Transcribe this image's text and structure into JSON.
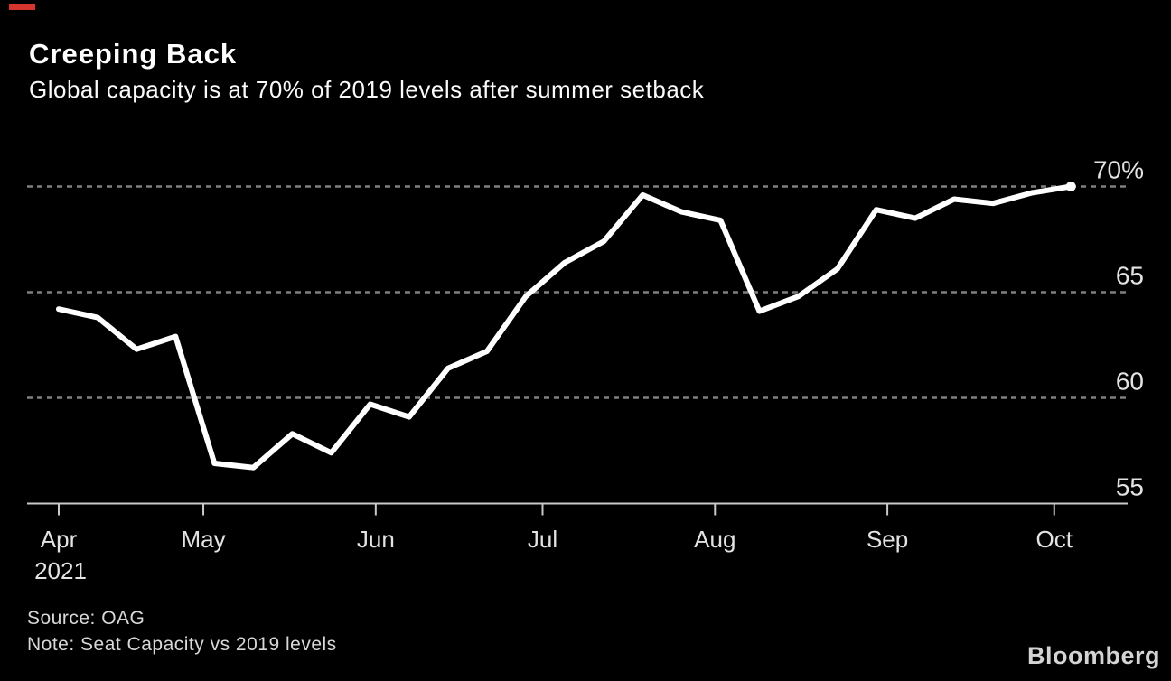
{
  "header": {
    "title": "Creeping Back",
    "subtitle": "Global capacity is at 70% of 2019 levels after summer setback"
  },
  "footer": {
    "source": "Source: OAG",
    "note": "Note: Seat Capacity vs 2019 levels",
    "brand": "Bloomberg"
  },
  "colors": {
    "background": "#000000",
    "line": "#ffffff",
    "gridline": "#7f7f7f",
    "axis": "#c9c9c9",
    "text": "#e3e3e3",
    "muted_text": "#d8d8d8",
    "accent_red": "#d6352f"
  },
  "chart_data": {
    "type": "line",
    "title": "Creeping Back",
    "subtitle": "Global capacity is at 70% of 2019 levels after summer setback",
    "xlabel": "",
    "ylabel": "",
    "legend": "none",
    "grid": "dashed horizontal gridlines",
    "ylim": [
      55,
      71
    ],
    "x": [
      "Apr 5",
      "Apr 12",
      "Apr 19",
      "Apr 26",
      "May 3",
      "May 10",
      "May 17",
      "May 24",
      "May 31",
      "Jun 7",
      "Jun 14",
      "Jun 21",
      "Jun 28",
      "Jul 5",
      "Jul 12",
      "Jul 19",
      "Jul 26",
      "Aug 2",
      "Aug 9",
      "Aug 16",
      "Aug 23",
      "Aug 30",
      "Sep 6",
      "Sep 13",
      "Sep 20",
      "Sep 27",
      "Oct 4"
    ],
    "values": [
      64.2,
      63.8,
      62.3,
      62.9,
      56.9,
      56.7,
      58.3,
      57.4,
      59.7,
      59.1,
      61.4,
      62.2,
      64.8,
      66.4,
      67.4,
      69.6,
      68.8,
      68.4,
      64.1,
      64.8,
      66.1,
      68.9,
      68.5,
      69.4,
      69.2,
      69.7,
      70.0
    ],
    "x_axis": {
      "ticks": [
        {
          "label": "Apr",
          "sub_label": "2021",
          "day_offset": 0
        },
        {
          "label": "May",
          "day_offset": 26
        },
        {
          "label": "Jun",
          "day_offset": 57
        },
        {
          "label": "Jul",
          "day_offset": 87
        },
        {
          "label": "Aug",
          "day_offset": 118
        },
        {
          "label": "Sep",
          "day_offset": 149
        },
        {
          "label": "Oct",
          "day_offset": 179
        }
      ]
    },
    "y_axis": {
      "ticks": [
        {
          "label": "70%",
          "value": 70
        },
        {
          "label": "65",
          "value": 65
        },
        {
          "label": "60",
          "value": 60
        },
        {
          "label": "55",
          "value": 55
        }
      ],
      "baseline_value": 55
    }
  }
}
